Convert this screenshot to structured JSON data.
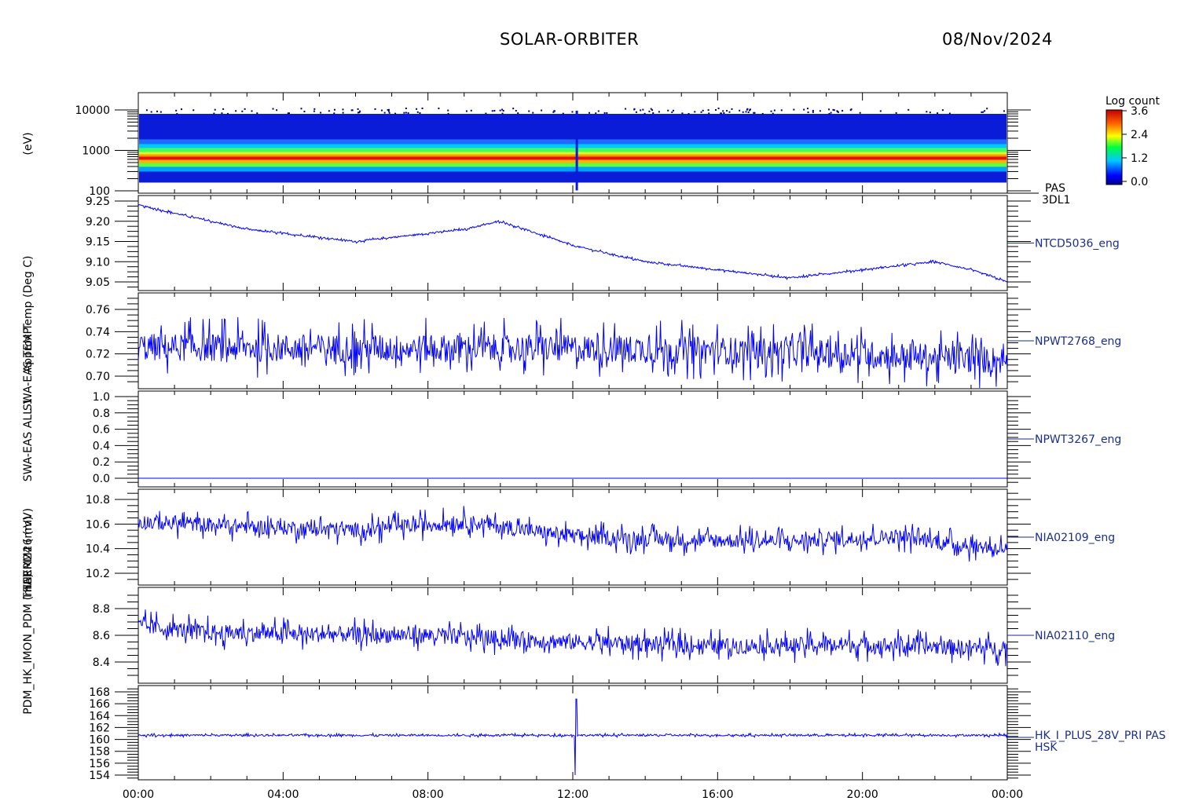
{
  "header": {
    "mission": "SOLAR-ORBITER",
    "date": "08/Nov/2024"
  },
  "colorbar": {
    "title": "Log count",
    "ticks": [
      "3.6",
      "2.4",
      "1.2",
      "0.0"
    ],
    "range": [
      0.0,
      3.6
    ]
  },
  "time_axis": {
    "labels": [
      "00:00",
      "04:00",
      "08:00",
      "12:00",
      "16:00",
      "20:00",
      "00:00"
    ],
    "range_hours": [
      0,
      24
    ]
  },
  "colors": {
    "trace": "#0000ff",
    "panel_label": "#1a2e8c"
  },
  "chart_data": [
    {
      "type": "heatmap",
      "ylabel": "(eV)",
      "scale": "log",
      "ylim": [
        100,
        10000
      ],
      "yticks": [
        "10000",
        "1000",
        "100"
      ],
      "labels": [
        "PAS",
        "3DL1"
      ],
      "peak_energy_ev": 700,
      "max_energy_ev": 8000,
      "min_energy_ev": 160,
      "spike_hour": 12.1
    },
    {
      "type": "line",
      "ylabel": "Approx Temp (Deg C)",
      "label": "NTCD5036_eng",
      "ylim": [
        9.04,
        9.26
      ],
      "yticks": [
        "9.25",
        "9.20",
        "9.15",
        "9.10",
        "9.05"
      ],
      "x": [
        0,
        1,
        2,
        3,
        4,
        5,
        6,
        7,
        8,
        9,
        10,
        11,
        12,
        13,
        14,
        15,
        16,
        17,
        18,
        19,
        20,
        21,
        22,
        23,
        24
      ],
      "y": [
        9.24,
        9.22,
        9.2,
        9.18,
        9.17,
        9.16,
        9.15,
        9.16,
        9.17,
        9.18,
        9.2,
        9.17,
        9.14,
        9.12,
        9.1,
        9.09,
        9.08,
        9.07,
        9.06,
        9.07,
        9.08,
        9.09,
        9.1,
        9.08,
        9.05
      ],
      "noise": 0.004
    },
    {
      "type": "line",
      "ylabel": "SWA-EAS TEMP",
      "label": "NPWT2768_eng",
      "ylim": [
        0.69,
        0.77
      ],
      "yticks": [
        "0.76",
        "0.74",
        "0.72",
        "0.70"
      ],
      "x": [
        0,
        6,
        12,
        18,
        24
      ],
      "y": [
        0.726,
        0.725,
        0.725,
        0.722,
        0.714
      ],
      "noise": 0.025
    },
    {
      "type": "line",
      "ylabel": "SWA-EAS ALL 1",
      "label": "NPWT3267_eng",
      "ylim": [
        -0.05,
        1.0
      ],
      "yticks": [
        "1.0",
        "0.8",
        "0.6",
        "0.4",
        "0.2",
        "0.0"
      ],
      "x": [
        0,
        24
      ],
      "y": [
        0.0,
        0.0
      ],
      "noise": 0.0
    },
    {
      "type": "line",
      "ylabel": "THERM24 (mV)",
      "label": "NIA02109_eng",
      "ylim": [
        10.15,
        10.85
      ],
      "yticks": [
        "10.8",
        "10.6",
        "10.4",
        "10.2"
      ],
      "x": [
        0,
        3,
        6,
        9,
        12,
        15,
        18,
        21,
        23,
        24
      ],
      "y": [
        10.62,
        10.58,
        10.55,
        10.62,
        10.5,
        10.47,
        10.46,
        10.5,
        10.42,
        10.4
      ],
      "noise": 0.12
    },
    {
      "type": "line",
      "ylabel": "THERM26 (mV)",
      "label": "NIA02110_eng",
      "ylim": [
        8.25,
        8.92
      ],
      "yticks": [
        "8.8",
        "8.6",
        "8.4"
      ],
      "x": [
        0,
        2,
        4,
        8,
        12,
        16,
        20,
        24
      ],
      "y": [
        8.67,
        8.62,
        8.61,
        8.6,
        8.55,
        8.52,
        8.53,
        8.5
      ],
      "noise": 0.12
    },
    {
      "type": "line",
      "ylabel": "PDM_HK_IMON_PDM (mA)",
      "labels": [
        "HK_I_PLUS_28V_PRI PAS",
        "HSK"
      ],
      "ylim": [
        153,
        168
      ],
      "yticks": [
        "168",
        "166",
        "164",
        "162",
        "160",
        "158",
        "156",
        "154"
      ],
      "x": [
        0,
        24
      ],
      "y": [
        160.7,
        160.7
      ],
      "noise": 0.3,
      "spike": {
        "hour": 12.1,
        "min": 154.0,
        "max": 166.8
      }
    }
  ]
}
